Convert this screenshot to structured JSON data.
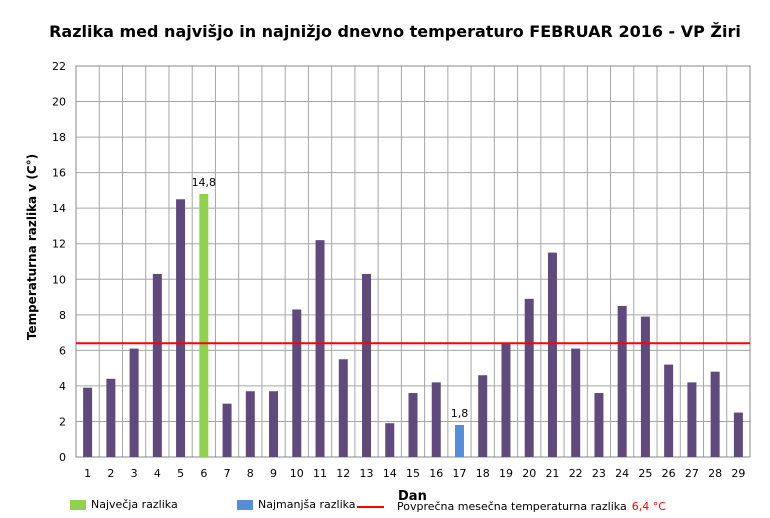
{
  "chart_data": {
    "type": "bar",
    "title": "Razlika med najvišjo  in najnižjo  dnevno  temperaturo  FEBRUAR 2016 - VP Žiri",
    "xlabel": "Dan",
    "ylabel": "Temperaturna razlika v (C°)",
    "ylim": [
      0,
      22
    ],
    "yticks": [
      0,
      2,
      4,
      6,
      8,
      10,
      12,
      14,
      16,
      18,
      20,
      22
    ],
    "categories": [
      "1",
      "2",
      "3",
      "4",
      "5",
      "6",
      "7",
      "8",
      "9",
      "10",
      "11",
      "12",
      "13",
      "14",
      "15",
      "16",
      "17",
      "18",
      "19",
      "20",
      "21",
      "22",
      "23",
      "24",
      "25",
      "26",
      "27",
      "28",
      "29"
    ],
    "values": [
      3.9,
      4.4,
      6.1,
      10.3,
      14.5,
      14.8,
      3.0,
      3.7,
      3.7,
      8.3,
      12.2,
      5.5,
      10.3,
      1.9,
      3.6,
      4.2,
      1.8,
      4.6,
      6.4,
      8.9,
      11.5,
      6.1,
      3.6,
      8.5,
      7.9,
      5.2,
      4.2,
      4.8,
      2.5
    ],
    "max_index": 5,
    "min_index": 16,
    "max_label": "14,8",
    "min_label": "1,8",
    "average": 6.4,
    "grid": true,
    "colors": {
      "default": "#604a7b",
      "max": "#92d050",
      "min": "#558ed5",
      "average": "#ff0000"
    },
    "legend": {
      "max": "Največja razlika",
      "min": "Najmanjša razlika",
      "average": "Povprečna mesečna temperaturna razlika",
      "average_value": "6,4 °C"
    },
    "legend_position": "bottom"
  }
}
